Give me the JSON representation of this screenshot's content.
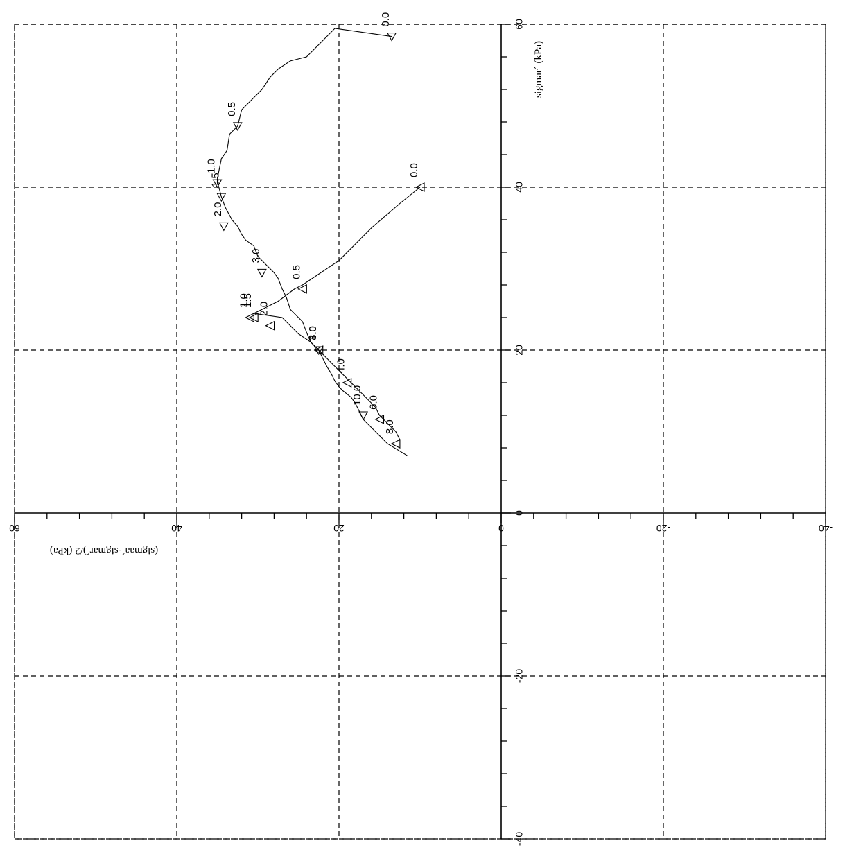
{
  "chart_data": {
    "type": "line",
    "title": "",
    "xlabel": "sigmar´ (kPa)",
    "ylabel": "(sigmaa´-sigmar´)/2 (kPa)",
    "xlim": [
      -40,
      60
    ],
    "ylim": [
      -40,
      60
    ],
    "x_ticks": [
      "-40",
      "-20",
      "0",
      "20",
      "40",
      "60"
    ],
    "y_ticks": [
      "-40",
      "-20",
      "0",
      "20",
      "40",
      "60"
    ],
    "grid": true,
    "series": [
      {
        "x": [
          58.5,
          59.5,
          57.5,
          56,
          55.5,
          54.5,
          53.5,
          52,
          50.5,
          49.5,
          47.5,
          46.5,
          44.5,
          43.5,
          42,
          41,
          40.5,
          40,
          38.8,
          37.5,
          36,
          35.2,
          34.2,
          33.5,
          32.8,
          31.5,
          30.5,
          29.5,
          28.8,
          27.5,
          26.5,
          25,
          24,
          23.5,
          22.2,
          21,
          20,
          19,
          18,
          17.2,
          16.2,
          15.5,
          15,
          14.2,
          13.5,
          12.5,
          11.5,
          10.5,
          9.5,
          8.5,
          7
        ],
        "y": [
          13.5,
          20.5,
          22.5,
          24,
          26,
          27.5,
          28.5,
          29.5,
          31,
          32,
          32.5,
          33.5,
          33.8,
          34.5,
          34.8,
          35,
          35,
          34.8,
          34.5,
          34,
          33.2,
          32.5,
          32,
          31.5,
          30.5,
          30,
          29,
          28,
          27.5,
          27,
          26.5,
          26,
          25,
          24.5,
          24,
          23.5,
          22.5,
          22,
          21.5,
          21,
          20.5,
          20,
          19.5,
          18.5,
          18,
          17.5,
          17,
          16,
          15,
          14,
          11.5
        ],
        "markers": [
          {
            "x": 58.5,
            "y": 13.5,
            "label": "0.0",
            "shape": "down"
          },
          {
            "x": 47.5,
            "y": 32.5,
            "label": "0.5",
            "shape": "down"
          },
          {
            "x": 40.5,
            "y": 35,
            "label": "1.0",
            "shape": "down"
          },
          {
            "x": 38.8,
            "y": 34.5,
            "label": "1.5",
            "shape": "down"
          },
          {
            "x": 35.2,
            "y": 34.2,
            "label": "2.0",
            "shape": "down"
          },
          {
            "x": 29.5,
            "y": 29.5,
            "label": "3.0",
            "shape": "down"
          },
          {
            "x": 20,
            "y": 22.5,
            "label": "4.0",
            "shape": "down"
          },
          {
            "x": 12,
            "y": 17,
            "label": "10.0",
            "shape": "down"
          }
        ]
      },
      {
        "x": [
          40,
          38,
          35,
          31,
          28,
          27.5,
          26,
          25,
          24.5,
          24,
          23,
          22,
          21,
          20,
          19,
          18,
          17,
          16,
          15,
          14,
          13,
          12,
          11,
          10,
          9
        ],
        "y": [
          10,
          12.5,
          16,
          20,
          24.5,
          25.5,
          27.5,
          29.5,
          30.5,
          27,
          26,
          25,
          23.5,
          22.5,
          21.5,
          20.5,
          19.5,
          18.5,
          17.5,
          16.5,
          15.5,
          15,
          14,
          13,
          12.5
        ],
        "markers": [
          {
            "x": 40,
            "y": 10,
            "label": "0.0",
            "shape": "left"
          },
          {
            "x": 27.5,
            "y": 24.5,
            "label": "0.5",
            "shape": "left"
          },
          {
            "x": 24,
            "y": 31,
            "label": "1.0",
            "shape": "left"
          },
          {
            "x": 24,
            "y": 30.5,
            "label": "1.5",
            "shape": "left"
          },
          {
            "x": 23,
            "y": 28.5,
            "label": "2.0",
            "shape": "left"
          },
          {
            "x": 20,
            "y": 22.5,
            "label": "3.0",
            "shape": "left"
          },
          {
            "x": 16,
            "y": 19,
            "label": "4.0",
            "shape": "left"
          },
          {
            "x": 11.5,
            "y": 15,
            "label": "6.0",
            "shape": "left"
          },
          {
            "x": 8.5,
            "y": 13,
            "label": "8.0",
            "shape": "left"
          }
        ]
      }
    ]
  }
}
